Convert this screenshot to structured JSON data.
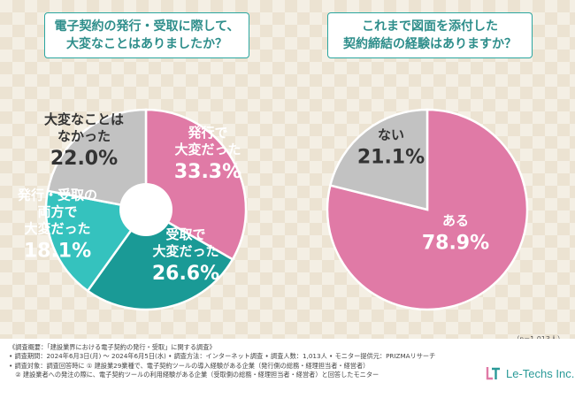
{
  "chart_data": [
    {
      "type": "pie",
      "style": "donut",
      "title": "電子契約の発行・受取に際して、大変なことはありましたか？",
      "title_lines": [
        "電子契約の発行・受取に際して、",
        "大変なことはありましたか？"
      ],
      "slices": [
        {
          "label": "発行で大変だった",
          "label_lines": [
            "発行で",
            "大変だった"
          ],
          "value": 33.3,
          "value_label": "33.3%",
          "color": "#e07aa6",
          "text_color": "#ffffff"
        },
        {
          "label": "受取で大変だった",
          "label_lines": [
            "受取で",
            "大変だった"
          ],
          "value": 26.6,
          "value_label": "26.6%",
          "color": "#1a9a96",
          "text_color": "#ffffff"
        },
        {
          "label": "発行・受取の両方で大変だった",
          "label_lines": [
            "発行・受取の",
            "両方で",
            "大変だった"
          ],
          "value": 18.1,
          "value_label": "18.1%",
          "color": "#35c2be",
          "text_color": "#ffffff"
        },
        {
          "label": "大変なことはなかった",
          "label_lines": [
            "大変なことは",
            "なかった"
          ],
          "value": 22.0,
          "value_label": "22.0%",
          "color": "#c2c2c2",
          "text_color": "#333333"
        }
      ]
    },
    {
      "type": "pie",
      "title": "これまで図面を添付した契約締結の経験はありますか？",
      "title_lines": [
        "これまで図面を添付した",
        "契約締結の経験はありますか？"
      ],
      "slices": [
        {
          "label": "ある",
          "label_lines": [
            "ある"
          ],
          "value": 78.9,
          "value_label": "78.9%",
          "color": "#e07aa6",
          "text_color": "#ffffff"
        },
        {
          "label": "ない",
          "label_lines": [
            "ない"
          ],
          "value": 21.1,
          "value_label": "21.1%",
          "color": "#c2c2c2",
          "text_color": "#333333"
        }
      ]
    }
  ],
  "n_note": "（n=1,013人）",
  "footer": {
    "lines": [
      "《調査概要：「建設業界における電子契約の発行・受取」に関する調査》",
      "• 調査期間：2024年6月3日(月) 〜 2024年6月5日(水) • 調査方法：インターネット調査 • 調査人数：1,013人 • モニター提供元：PRIZMAリサーチ",
      "• 調査対象：調査回答時に ① 建設業29業種で、電子契約ツールの導入経験がある企業（発行側の総務・経理担当者・経営者）",
      "　② 建設業者への発注の際に、電子契約ツールの利用経験がある企業（受取側の総務・経理担当者・経営者）と回答したモニター"
    ]
  },
  "logo": {
    "text": "Le-Techs Inc.",
    "icon": "le-techs-logo-icon"
  }
}
